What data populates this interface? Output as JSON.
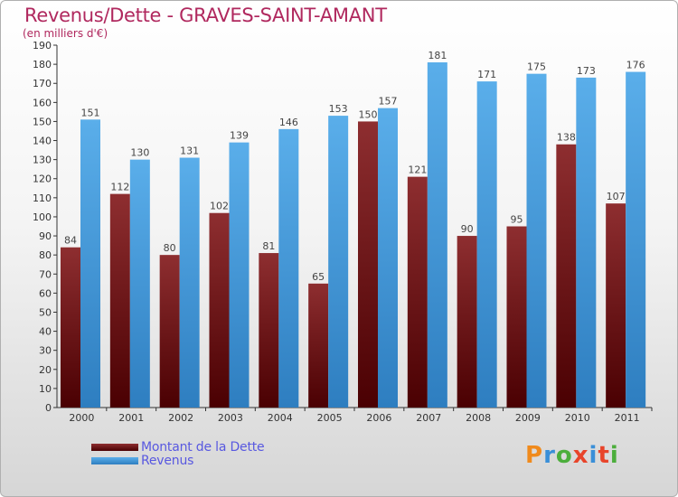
{
  "header": {
    "title": "Revenus/Dette - GRAVES-SAINT-AMANT",
    "subtitle": "(en milliers d'€)"
  },
  "logo": {
    "text": "Proxiti"
  },
  "colors": {
    "dette": "#6e1418",
    "revenus": "#4aa2e2",
    "title": "#b0285e",
    "legend_text": "#5858e0"
  },
  "chart_data": {
    "type": "bar",
    "title": "Revenus/Dette - GRAVES-SAINT-AMANT",
    "subtitle": "(en milliers d'€)",
    "categories": [
      "2000",
      "2001",
      "2002",
      "2003",
      "2004",
      "2005",
      "2006",
      "2007",
      "2008",
      "2009",
      "2010",
      "2011"
    ],
    "series": [
      {
        "name": "Montant de la Dette",
        "values": [
          84,
          112,
          80,
          102,
          81,
          65,
          150,
          121,
          90,
          95,
          138,
          107
        ]
      },
      {
        "name": "Revenus",
        "values": [
          151,
          130,
          131,
          139,
          146,
          153,
          157,
          181,
          171,
          175,
          173,
          176
        ]
      }
    ],
    "ylim": [
      0,
      190
    ],
    "ytick_step": 10,
    "grid": false,
    "legend_position": "bottom-left",
    "data_labels": true
  }
}
